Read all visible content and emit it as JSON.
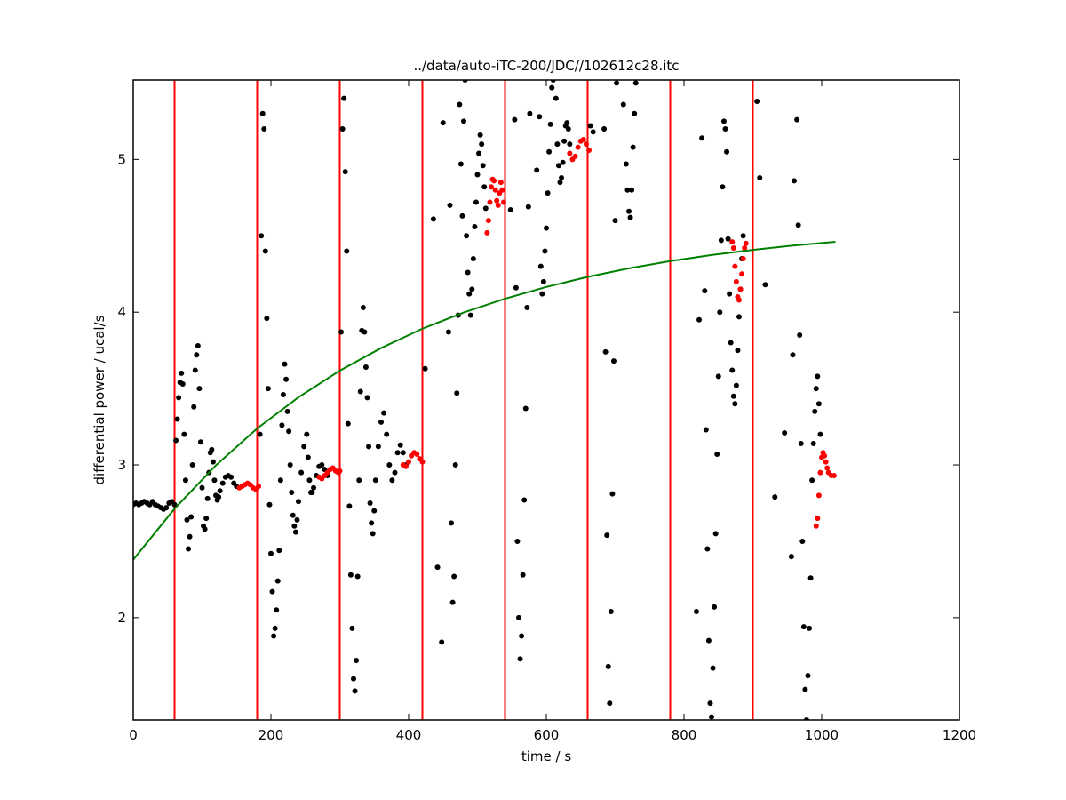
{
  "chart_data": {
    "type": "scatter",
    "title": "../data/auto-iTC-200/JDC//102612c28.itc",
    "x_label": "time / s",
    "y_label": "differential power / ucal/s",
    "xlim": [
      0,
      1200
    ],
    "ylim": [
      1.33,
      5.52
    ],
    "xticks": [
      0,
      200,
      400,
      600,
      800,
      1000,
      1200
    ],
    "yticks": [
      2,
      3,
      4,
      5
    ],
    "vlines": [
      60,
      180,
      300,
      420,
      540,
      660,
      780,
      900
    ],
    "vline_color": "#ff0000",
    "series": [
      {
        "type": "scatter",
        "color": "#000000",
        "x": [
          0,
          4,
          8,
          12,
          16,
          20,
          24,
          28,
          32,
          36,
          40,
          44,
          48,
          52,
          56,
          60,
          62,
          64,
          66,
          68,
          70,
          72,
          74,
          76,
          78,
          80,
          82,
          84,
          86,
          88,
          90,
          92,
          94,
          96,
          98,
          100,
          102,
          104,
          106,
          108,
          110,
          112,
          114,
          116,
          118,
          120,
          122,
          124,
          126,
          130,
          134,
          138,
          142,
          146,
          150,
          184,
          186,
          188,
          190,
          192,
          194,
          196,
          198,
          200,
          202,
          204,
          206,
          208,
          210,
          212,
          214,
          216,
          218,
          220,
          222,
          224,
          226,
          228,
          230,
          232,
          234,
          236,
          238,
          240,
          244,
          248,
          252,
          254,
          256,
          258,
          260,
          262,
          266,
          270,
          274,
          278,
          282,
          302,
          304,
          306,
          308,
          310,
          312,
          314,
          316,
          318,
          320,
          322,
          324,
          326,
          328,
          330,
          332,
          334,
          336,
          338,
          340,
          342,
          344,
          346,
          348,
          350,
          352,
          356,
          360,
          364,
          368,
          372,
          376,
          380,
          384,
          388,
          392,
          396,
          424,
          436,
          442,
          448,
          450,
          458,
          460,
          462,
          464,
          466,
          468,
          470,
          472,
          474,
          476,
          478,
          480,
          482,
          484,
          486,
          488,
          490,
          492,
          494,
          496,
          498,
          500,
          502,
          504,
          506,
          508,
          510,
          512,
          548,
          554,
          556,
          558,
          560,
          562,
          564,
          566,
          568,
          570,
          572,
          574,
          576,
          586,
          590,
          592,
          594,
          596,
          598,
          600,
          602,
          604,
          606,
          608,
          610,
          614,
          616,
          618,
          620,
          622,
          624,
          626,
          628,
          630,
          632,
          634,
          664,
          668,
          684,
          686,
          688,
          690,
          692,
          694,
          696,
          698,
          700,
          702,
          712,
          716,
          718,
          720,
          722,
          724,
          726,
          728,
          730,
          818,
          822,
          826,
          830,
          832,
          834,
          836,
          838,
          840,
          842,
          844,
          846,
          848,
          850,
          852,
          854,
          856,
          858,
          860,
          862,
          864,
          866,
          868,
          870,
          872,
          874,
          876,
          878,
          880,
          882,
          884,
          886,
          906,
          910,
          918,
          932,
          946,
          956,
          958,
          960,
          964,
          966,
          968,
          970,
          972,
          974,
          976,
          978,
          980,
          982,
          984,
          986,
          988,
          990,
          992,
          994,
          996,
          998
        ],
        "values": [
          2.74,
          2.75,
          2.74,
          2.75,
          2.76,
          2.75,
          2.74,
          2.76,
          2.74,
          2.73,
          2.72,
          2.71,
          2.72,
          2.75,
          2.76,
          2.74,
          3.16,
          3.3,
          3.44,
          3.54,
          3.6,
          3.53,
          3.2,
          2.9,
          2.64,
          2.45,
          2.53,
          2.66,
          3.0,
          3.38,
          3.62,
          3.72,
          3.78,
          3.5,
          3.15,
          2.85,
          2.6,
          2.58,
          2.65,
          2.78,
          2.95,
          3.08,
          3.1,
          3.02,
          2.9,
          2.8,
          2.77,
          2.79,
          2.83,
          2.88,
          2.92,
          2.93,
          2.92,
          2.88,
          2.86,
          3.2,
          4.5,
          5.3,
          5.2,
          4.4,
          3.96,
          3.5,
          2.74,
          2.42,
          2.17,
          1.88,
          1.93,
          2.05,
          2.24,
          2.44,
          2.9,
          3.26,
          3.46,
          3.66,
          3.56,
          3.35,
          3.22,
          3.0,
          2.82,
          2.67,
          2.6,
          2.56,
          2.64,
          2.76,
          2.95,
          3.12,
          3.2,
          3.05,
          2.9,
          2.82,
          2.82,
          2.85,
          2.93,
          2.99,
          3.0,
          2.97,
          2.93,
          3.87,
          5.2,
          5.4,
          4.92,
          4.4,
          3.27,
          2.73,
          2.28,
          1.93,
          1.6,
          1.52,
          1.72,
          2.27,
          2.9,
          3.48,
          3.88,
          4.03,
          3.87,
          3.64,
          3.44,
          3.12,
          2.75,
          2.62,
          2.55,
          2.7,
          2.9,
          3.12,
          3.28,
          3.34,
          3.2,
          3.0,
          2.9,
          2.95,
          3.08,
          3.13,
          3.08,
          3.0,
          3.63,
          4.61,
          2.33,
          1.84,
          5.24,
          3.87,
          4.7,
          2.62,
          2.1,
          2.27,
          3.0,
          3.47,
          3.98,
          5.36,
          4.97,
          4.63,
          5.25,
          5.52,
          4.5,
          4.26,
          4.12,
          3.98,
          4.15,
          4.35,
          4.56,
          4.72,
          4.9,
          5.04,
          5.16,
          5.1,
          4.96,
          4.82,
          4.68,
          4.67,
          5.26,
          4.16,
          2.5,
          2.0,
          1.73,
          1.88,
          2.28,
          2.77,
          3.37,
          4.03,
          4.69,
          5.3,
          4.93,
          5.28,
          4.3,
          4.12,
          4.2,
          4.4,
          4.55,
          4.78,
          5.05,
          5.23,
          5.47,
          5.52,
          5.4,
          5.1,
          4.96,
          4.85,
          4.88,
          4.98,
          5.12,
          5.22,
          5.24,
          5.2,
          5.1,
          5.22,
          5.18,
          5.2,
          3.74,
          2.54,
          1.68,
          1.44,
          2.04,
          2.81,
          3.68,
          4.6,
          5.5,
          5.36,
          4.97,
          4.8,
          4.66,
          4.62,
          4.8,
          5.08,
          5.3,
          5.5,
          2.04,
          3.95,
          5.14,
          4.14,
          3.23,
          2.45,
          1.85,
          1.44,
          1.35,
          1.67,
          2.07,
          2.55,
          3.07,
          3.58,
          4.0,
          4.47,
          4.82,
          5.25,
          5.2,
          5.05,
          4.48,
          4.12,
          3.8,
          3.62,
          3.45,
          3.4,
          3.52,
          3.75,
          3.97,
          4.15,
          4.35,
          4.5,
          5.38,
          4.88,
          4.18,
          2.79,
          3.21,
          2.4,
          3.72,
          4.86,
          5.26,
          4.57,
          3.85,
          3.14,
          2.5,
          1.94,
          1.53,
          1.33,
          1.62,
          1.93,
          2.26,
          2.9,
          3.14,
          3.35,
          3.5,
          3.58,
          3.4,
          3.2
        ]
      },
      {
        "type": "scatter",
        "color": "#ff0000",
        "x": [
          154,
          158,
          162,
          166,
          170,
          174,
          178,
          182,
          270,
          274,
          278,
          282,
          286,
          290,
          294,
          298,
          300,
          392,
          396,
          400,
          404,
          408,
          412,
          416,
          420,
          514,
          516,
          518,
          520,
          522,
          524,
          526,
          528,
          530,
          532,
          534,
          536,
          538,
          634,
          638,
          642,
          646,
          650,
          654,
          658,
          662,
          870,
          872,
          874,
          876,
          878,
          880,
          882,
          884,
          886,
          888,
          890,
          992,
          994,
          996,
          998,
          1000,
          1002,
          1004,
          1006,
          1008,
          1010,
          1014,
          1018
        ],
        "values": [
          2.85,
          2.86,
          2.87,
          2.88,
          2.87,
          2.85,
          2.84,
          2.86,
          2.92,
          2.91,
          2.93,
          2.95,
          2.97,
          2.98,
          2.96,
          2.95,
          2.96,
          3.0,
          2.99,
          3.02,
          3.06,
          3.08,
          3.07,
          3.04,
          3.02,
          4.52,
          4.6,
          4.72,
          4.82,
          4.87,
          4.86,
          4.8,
          4.73,
          4.7,
          4.78,
          4.85,
          4.8,
          4.72,
          5.04,
          5.0,
          5.02,
          5.08,
          5.12,
          5.13,
          5.1,
          5.06,
          4.46,
          4.42,
          4.3,
          4.2,
          4.1,
          4.08,
          4.15,
          4.25,
          4.35,
          4.42,
          4.45,
          2.6,
          2.65,
          2.8,
          2.95,
          3.05,
          3.08,
          3.06,
          3.02,
          2.98,
          2.95,
          2.93,
          2.93
        ]
      },
      {
        "type": "line",
        "color": "#008000",
        "x": [
          0,
          60,
          120,
          180,
          240,
          300,
          360,
          420,
          480,
          540,
          600,
          660,
          720,
          780,
          840,
          900,
          960,
          1020
        ],
        "values": [
          2.38,
          2.713,
          2.997,
          3.239,
          3.443,
          3.617,
          3.765,
          3.892,
          3.998,
          4.088,
          4.165,
          4.231,
          4.287,
          4.334,
          4.374,
          4.408,
          4.437,
          4.461
        ]
      }
    ]
  }
}
